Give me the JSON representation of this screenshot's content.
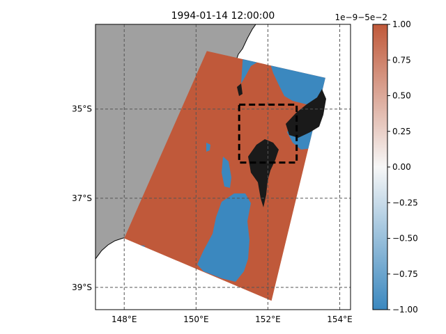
{
  "chart_data": {
    "type": "heatmap",
    "title": "1994-01-14 12:00:00",
    "xlabel": "",
    "ylabel": "",
    "projection": "PlateCarree",
    "lon_range": [
      147.2,
      154.3
    ],
    "lat_range": [
      -39.5,
      -33.1
    ],
    "lon_ticks": [
      148,
      150,
      152,
      154
    ],
    "lat_ticks": [
      -35,
      -37,
      -39
    ],
    "lon_tick_labels": [
      "148°E",
      "150°E",
      "152°E",
      "154°E"
    ],
    "lat_tick_labels": [
      "35°S",
      "37°S",
      "39°S"
    ],
    "grid": true,
    "land_color": "#a0a0a0",
    "positive_color": "#c0593a",
    "negative_color": "#3b88bf",
    "colorbar": {
      "label": "",
      "offset_text": "1e−9−5e−2",
      "vmin": -1.0,
      "vmax": 1.0,
      "ticks": [
        1.0,
        0.75,
        0.5,
        0.25,
        0.0,
        -0.25,
        -0.5,
        -0.75,
        -1.0
      ],
      "tick_labels": [
        "1.00",
        "0.75",
        "0.50",
        "0.25",
        "0.00",
        "−0.25",
        "−0.50",
        "−0.75",
        "−1.00"
      ],
      "colors": [
        "#3b88bf",
        "#f7f7f7",
        "#c0593a"
      ]
    },
    "domain_outline_lonlat": [
      [
        150.3,
        -33.7
      ],
      [
        153.6,
        -34.3
      ],
      [
        152.1,
        -39.3
      ],
      [
        148.0,
        -37.9
      ]
    ],
    "box_lonlat": [
      151.2,
      152.8,
      -36.2,
      -34.9
    ]
  }
}
